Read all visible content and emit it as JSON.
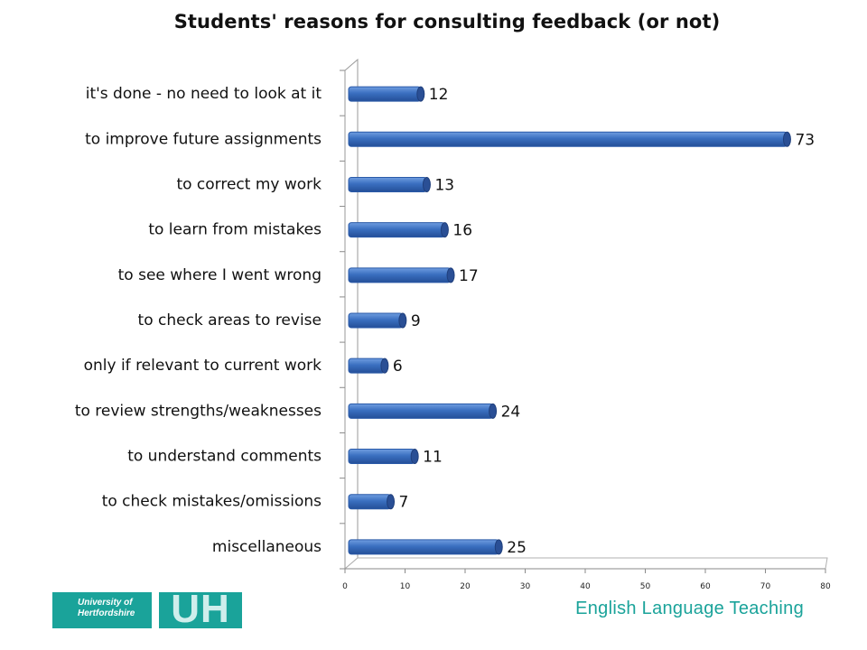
{
  "chart_data": {
    "type": "bar",
    "orientation": "horizontal",
    "title": "Students' reasons for consulting feedback (or not)",
    "categories": [
      "it's done - no need to look at it",
      "to improve future assignments",
      "to correct my work",
      "to learn from mistakes",
      "to see where I went wrong",
      "to check areas to revise",
      "only if relevant to current work",
      "to review strengths/weaknesses",
      "to understand comments",
      "to check mistakes/omissions",
      "miscellaneous"
    ],
    "values": [
      12,
      73,
      13,
      16,
      17,
      9,
      6,
      24,
      11,
      7,
      25
    ],
    "xlim": [
      0,
      80
    ],
    "xticks": [
      0,
      10,
      20,
      30,
      40,
      50,
      60,
      70,
      80
    ],
    "bar_color": "#3a6fc0",
    "grid": false,
    "legend": "none"
  },
  "footer": {
    "logo_text": "University of Hertfordshire",
    "logo_mark": "UH",
    "tagline": "English Language Teaching",
    "brand_color": "#1aa39a"
  }
}
